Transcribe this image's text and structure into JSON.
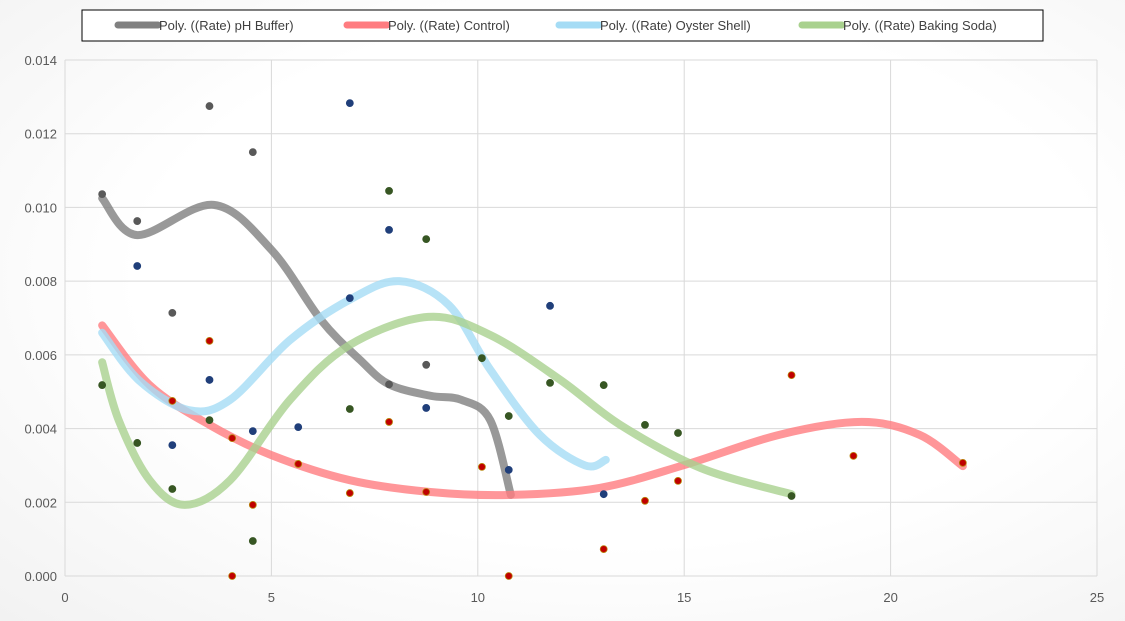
{
  "chart_data": {
    "type": "scatter",
    "title": "",
    "xlabel": "",
    "ylabel": "",
    "xlim": [
      0,
      25
    ],
    "ylim": [
      0,
      0.014
    ],
    "x_ticks": [
      "0",
      "5",
      "10",
      "15",
      "20",
      "25"
    ],
    "y_ticks": [
      "0.000",
      "0.002",
      "0.004",
      "0.006",
      "0.008",
      "0.010",
      "0.012",
      "0.014"
    ],
    "grid": true,
    "legend_position": "top",
    "legend": [
      "Poly. ((Rate) pH Buffer)",
      "Poly. ((Rate) Control)",
      "Poly. ((Rate) Oyster Shell)",
      "Poly. ((Rate) Baking Soda)"
    ],
    "series": [
      {
        "key": "ph_buffer",
        "marker_color": "#595959",
        "trend_color": "#808080",
        "points": [
          [
            0.9,
            0.01036
          ],
          [
            1.75,
            0.00963
          ],
          [
            2.6,
            0.00714
          ],
          [
            3.5,
            0.01275
          ],
          [
            4.55,
            0.0115
          ],
          [
            7.85,
            0.0052
          ],
          [
            8.75,
            0.00573
          ]
        ],
        "trendline": [
          [
            0.9,
            0.01025
          ],
          [
            1.75,
            0.00925
          ],
          [
            3.6,
            0.01007
          ],
          [
            5,
            0.00885
          ],
          [
            6.2,
            0.00695
          ],
          [
            7.15,
            0.00586
          ],
          [
            7.85,
            0.0052
          ],
          [
            8.85,
            0.00489
          ],
          [
            9.6,
            0.00478
          ],
          [
            10.3,
            0.00423
          ],
          [
            10.8,
            0.0022
          ]
        ]
      },
      {
        "key": "control",
        "marker_color": "#c00000",
        "trend_color": "#ff7c80",
        "points": [
          [
            2.6,
            0.00475
          ],
          [
            3.5,
            0.00638
          ],
          [
            4.05,
            0.00374
          ],
          [
            4.55,
            0.00193
          ],
          [
            4.05,
            0.0
          ],
          [
            5.65,
            0.00304
          ],
          [
            6.9,
            0.00225
          ],
          [
            7.85,
            0.00418
          ],
          [
            8.75,
            0.00228
          ],
          [
            10.1,
            0.00296
          ],
          [
            10.75,
            0.0
          ],
          [
            13.05,
            0.00073
          ],
          [
            14.05,
            0.00204
          ],
          [
            14.85,
            0.00258
          ],
          [
            17.6,
            0.00545
          ],
          [
            19.1,
            0.00326
          ],
          [
            21.75,
            0.00307
          ]
        ],
        "trendline": [
          [
            0.9,
            0.0068
          ],
          [
            2.05,
            0.00518
          ],
          [
            3.5,
            0.0041
          ],
          [
            5,
            0.00328
          ],
          [
            6.9,
            0.0026
          ],
          [
            8.85,
            0.00228
          ],
          [
            10.8,
            0.0022
          ],
          [
            12.95,
            0.00239
          ],
          [
            15,
            0.00301
          ],
          [
            17.3,
            0.00383
          ],
          [
            19.3,
            0.00418
          ],
          [
            20.7,
            0.00383
          ],
          [
            21.75,
            0.00298
          ]
        ]
      },
      {
        "key": "oyster_shell",
        "marker_color": "#203f7a",
        "trend_color": "#a5dcf5",
        "points": [
          [
            6.9,
            0.01283
          ],
          [
            1.75,
            0.00841
          ],
          [
            3.5,
            0.00532
          ],
          [
            2.6,
            0.00355
          ],
          [
            4.55,
            0.00393
          ],
          [
            5.65,
            0.00404
          ],
          [
            6.9,
            0.00754
          ],
          [
            7.85,
            0.00939
          ],
          [
            8.75,
            0.00456
          ],
          [
            11.75,
            0.00733
          ],
          [
            10.75,
            0.00288
          ],
          [
            13.05,
            0.00222
          ]
        ],
        "trendline": [
          [
            0.9,
            0.0066
          ],
          [
            1.8,
            0.0053
          ],
          [
            3.0,
            0.0045
          ],
          [
            4.0,
            0.00478
          ],
          [
            5.45,
            0.0064
          ],
          [
            6.9,
            0.0075
          ],
          [
            8.1,
            0.008
          ],
          [
            9.3,
            0.00735
          ],
          [
            10.3,
            0.0056
          ],
          [
            11.5,
            0.00383
          ],
          [
            12.6,
            0.003
          ],
          [
            13.1,
            0.00315
          ]
        ]
      },
      {
        "key": "baking_soda",
        "marker_color": "#375623",
        "trend_color": "#a9d18e",
        "points": [
          [
            0.9,
            0.00518
          ],
          [
            1.75,
            0.00361
          ],
          [
            2.6,
            0.00236
          ],
          [
            3.5,
            0.00423
          ],
          [
            4.55,
            0.00095
          ],
          [
            6.9,
            0.00453
          ],
          [
            7.85,
            0.01045
          ],
          [
            8.75,
            0.00914
          ],
          [
            10.1,
            0.00591
          ],
          [
            10.75,
            0.00434
          ],
          [
            11.75,
            0.00524
          ],
          [
            13.05,
            0.00518
          ],
          [
            14.05,
            0.0041
          ],
          [
            14.85,
            0.00388
          ],
          [
            17.6,
            0.00217
          ]
        ],
        "trendline": [
          [
            0.9,
            0.0058
          ],
          [
            1.3,
            0.00423
          ],
          [
            2.05,
            0.0026
          ],
          [
            2.9,
            0.00193
          ],
          [
            4.0,
            0.0026
          ],
          [
            5.45,
            0.00478
          ],
          [
            6.9,
            0.00627
          ],
          [
            8.8,
            0.00703
          ],
          [
            10.3,
            0.00654
          ],
          [
            12,
            0.00532
          ],
          [
            13.45,
            0.0041
          ],
          [
            15.4,
            0.00293
          ],
          [
            17.6,
            0.00222
          ]
        ]
      }
    ]
  }
}
